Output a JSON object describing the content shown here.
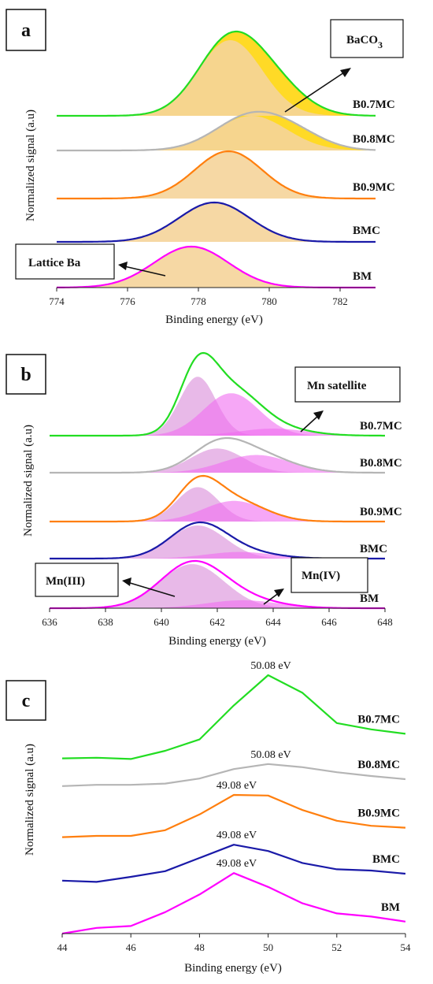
{
  "chart_data": [
    {
      "panel": "a",
      "type": "line",
      "xlabel": "Binding energy (eV)",
      "ylabel": "Normalized signal (a.u)",
      "xlim": [
        774,
        783
      ],
      "xticks": [
        774,
        776,
        778,
        780,
        782
      ],
      "series": [
        {
          "name": "BM",
          "color": "#ff00ff",
          "peak": 777.8,
          "width": 1.05
        },
        {
          "name": "BMC",
          "color": "#1a1aa8",
          "peak": 778.45,
          "width": 1.0
        },
        {
          "name": "B0.9MC",
          "color": "#ff7f0e",
          "peak": 778.85,
          "width": 0.95
        },
        {
          "name": "B0.8MC",
          "color": "#b5b5b5",
          "peak": 779.5,
          "width": 1.0
        },
        {
          "name": "B0.7MC",
          "color": "#22dd22",
          "peak": 778.9,
          "width": 0.9
        }
      ],
      "fill_colors": {
        "lattice": "#f5d49a",
        "carbonate": "#ffd400"
      },
      "annotations": [
        {
          "text": "BaCO",
          "sub": "3"
        },
        {
          "text": "Lattice Ba"
        }
      ]
    },
    {
      "panel": "b",
      "type": "line",
      "xlabel": "Binding energy (eV)",
      "ylabel": "Normalized signal (a.u)",
      "xlim": [
        636,
        648
      ],
      "xticks": [
        636,
        638,
        640,
        642,
        644,
        646,
        648
      ],
      "series": [
        {
          "name": "BM",
          "color": "#ff00ff",
          "components": [
            {
              "c": 641.1,
              "w": 1.15,
              "a": 1.0
            },
            {
              "c": 642.9,
              "w": 1.3,
              "a": 0.18
            }
          ]
        },
        {
          "name": "BMC",
          "color": "#1a1aa8",
          "components": [
            {
              "c": 641.3,
              "w": 1.0,
              "a": 1.0
            },
            {
              "c": 642.8,
              "w": 1.2,
              "a": 0.2
            }
          ]
        },
        {
          "name": "B0.9MC",
          "color": "#ff7f0e",
          "components": [
            {
              "c": 641.3,
              "w": 0.75,
              "a": 1.0
            },
            {
              "c": 642.6,
              "w": 1.1,
              "a": 0.6
            }
          ]
        },
        {
          "name": "B0.8MC",
          "color": "#b5b5b5",
          "components": [
            {
              "c": 642.0,
              "w": 0.95,
              "a": 0.75
            },
            {
              "c": 643.4,
              "w": 1.2,
              "a": 0.55
            }
          ]
        },
        {
          "name": "B0.7MC",
          "color": "#22dd22",
          "components": [
            {
              "c": 641.3,
              "w": 0.65,
              "a": 1.0
            },
            {
              "c": 642.5,
              "w": 1.0,
              "a": 0.72
            },
            {
              "c": 644.0,
              "w": 1.2,
              "a": 0.12
            }
          ]
        }
      ],
      "fill_colors": {
        "mn3": "#d98ad9",
        "mn4": "#f06cf0"
      },
      "annotations": [
        {
          "text": "Mn satellite"
        },
        {
          "text": "Mn(III)"
        },
        {
          "text": "Mn(IV)"
        }
      ]
    },
    {
      "panel": "c",
      "type": "line",
      "xlabel": "Binding energy (eV)",
      "ylabel": "Normalized signal (a.u)",
      "xlim": [
        44,
        54
      ],
      "xticks": [
        44,
        46,
        48,
        50,
        52,
        54
      ],
      "x": [
        44,
        45,
        46,
        47,
        48,
        49,
        50,
        51,
        52,
        53,
        54
      ],
      "series": [
        {
          "name": "BM",
          "color": "#ff00ff",
          "values": [
            0.0,
            0.45,
            0.6,
            1.7,
            3.1,
            4.8,
            3.7,
            2.4,
            1.6,
            1.35,
            0.95
          ],
          "peak_label": "49.08 eV",
          "peak_x": 49.08
        },
        {
          "name": "BMC",
          "color": "#1a1aa8",
          "values": [
            4.2,
            4.1,
            4.5,
            4.95,
            6.0,
            7.05,
            6.55,
            5.6,
            5.1,
            5.0,
            4.75
          ],
          "peak_label": "49.08 eV",
          "peak_x": 49.08
        },
        {
          "name": "B0.9MC",
          "color": "#ff7f0e",
          "values": [
            7.65,
            7.75,
            7.75,
            8.2,
            9.45,
            11.0,
            10.95,
            9.8,
            8.95,
            8.55,
            8.4
          ],
          "peak_label": "49.08 eV",
          "peak_x": 49.08
        },
        {
          "name": "B0.8MC",
          "color": "#b5b5b5",
          "values": [
            11.7,
            11.8,
            11.8,
            11.9,
            12.3,
            13.05,
            13.45,
            13.2,
            12.8,
            12.5,
            12.25
          ],
          "peak_label": "50.08 eV",
          "peak_x": 50.08
        },
        {
          "name": "B0.7MC",
          "color": "#22dd22",
          "values": [
            13.9,
            13.95,
            13.85,
            14.5,
            15.4,
            18.1,
            20.5,
            19.1,
            16.7,
            16.2,
            15.85
          ],
          "peak_label": "50.08 eV",
          "peak_x": 50.08
        }
      ]
    }
  ],
  "panels": {
    "a": {
      "letter": "a",
      "xlabel": "Binding energy (eV)",
      "ylabel": "Normalized signal (a.u)",
      "ann1": "BaCO",
      "ann1_sub": "3",
      "ann2": "Lattice Ba"
    },
    "b": {
      "letter": "b",
      "xlabel": "Binding energy (eV)",
      "ylabel": "Normalized signal (a.u)",
      "ann1": "Mn satellite",
      "ann2": "Mn(III)",
      "ann3": "Mn(IV)"
    },
    "c": {
      "letter": "c",
      "xlabel": "Binding energy (eV)",
      "ylabel": "Normalized signal (a.u)"
    }
  }
}
